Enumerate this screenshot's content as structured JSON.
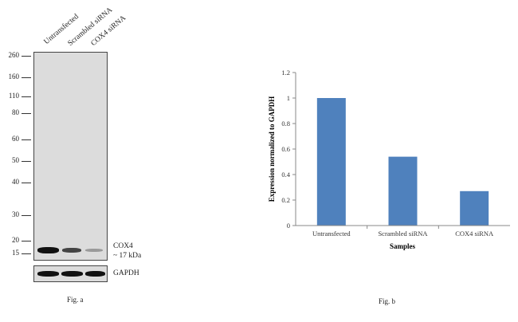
{
  "fig_a": {
    "lanes": [
      "Untransfected",
      "Scrambled siRNA",
      "COX4 siRNA"
    ],
    "ladder": [
      "260",
      "160",
      "110",
      "80",
      "60",
      "50",
      "40",
      "30",
      "20",
      "15"
    ],
    "target_label": "COX4",
    "target_size": "~ 17 kDa",
    "loading_control": "GAPDH",
    "caption": "Fig. a"
  },
  "fig_b": {
    "caption": "Fig. b"
  },
  "chart_data": {
    "type": "bar",
    "categories": [
      "Untransfected",
      "Scrambled siRNA",
      "COX4 siRNA"
    ],
    "values": [
      1.0,
      0.54,
      0.27
    ],
    "xlabel": "Samples",
    "ylabel": "Expression normalized to GAPDH",
    "ylim": [
      0,
      1.2
    ],
    "yticks": [
      "0",
      "0.2",
      "0.4",
      "0.6",
      "0.8",
      "1",
      "1.2"
    ],
    "bar_color": "#4f81bd",
    "grid": false
  }
}
